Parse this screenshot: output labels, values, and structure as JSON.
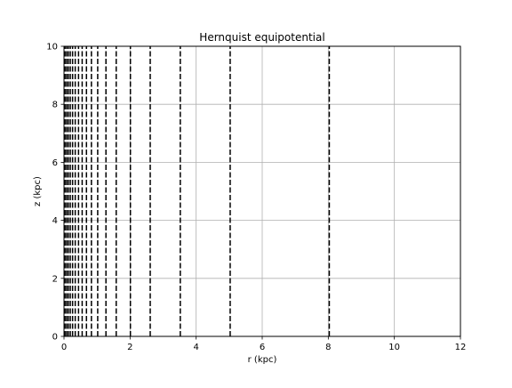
{
  "chart_data": {
    "type": "line",
    "title": "Hernquist equipotential",
    "xlabel": "r (kpc)",
    "ylabel": "z (kpc)",
    "xlim": [
      0,
      12
    ],
    "ylim": [
      0,
      10
    ],
    "xticks": [
      0,
      2,
      4,
      6,
      8,
      10,
      12
    ],
    "yticks": [
      0,
      2,
      4,
      6,
      8,
      10
    ],
    "xtick_labels": [
      "0",
      "2",
      "4",
      "6",
      "8",
      "10",
      "12"
    ],
    "ytick_labels": [
      "0",
      "2",
      "4",
      "6",
      "8",
      "10"
    ],
    "grid": true,
    "line_style": "dashed",
    "line_color": "#000000",
    "contour_r_values": [
      0.03,
      0.08,
      0.13,
      0.19,
      0.26,
      0.34,
      0.44,
      0.55,
      0.68,
      0.83,
      1.02,
      1.27,
      1.58,
      2.01,
      2.61,
      3.52,
      5.03,
      8.03
    ]
  }
}
